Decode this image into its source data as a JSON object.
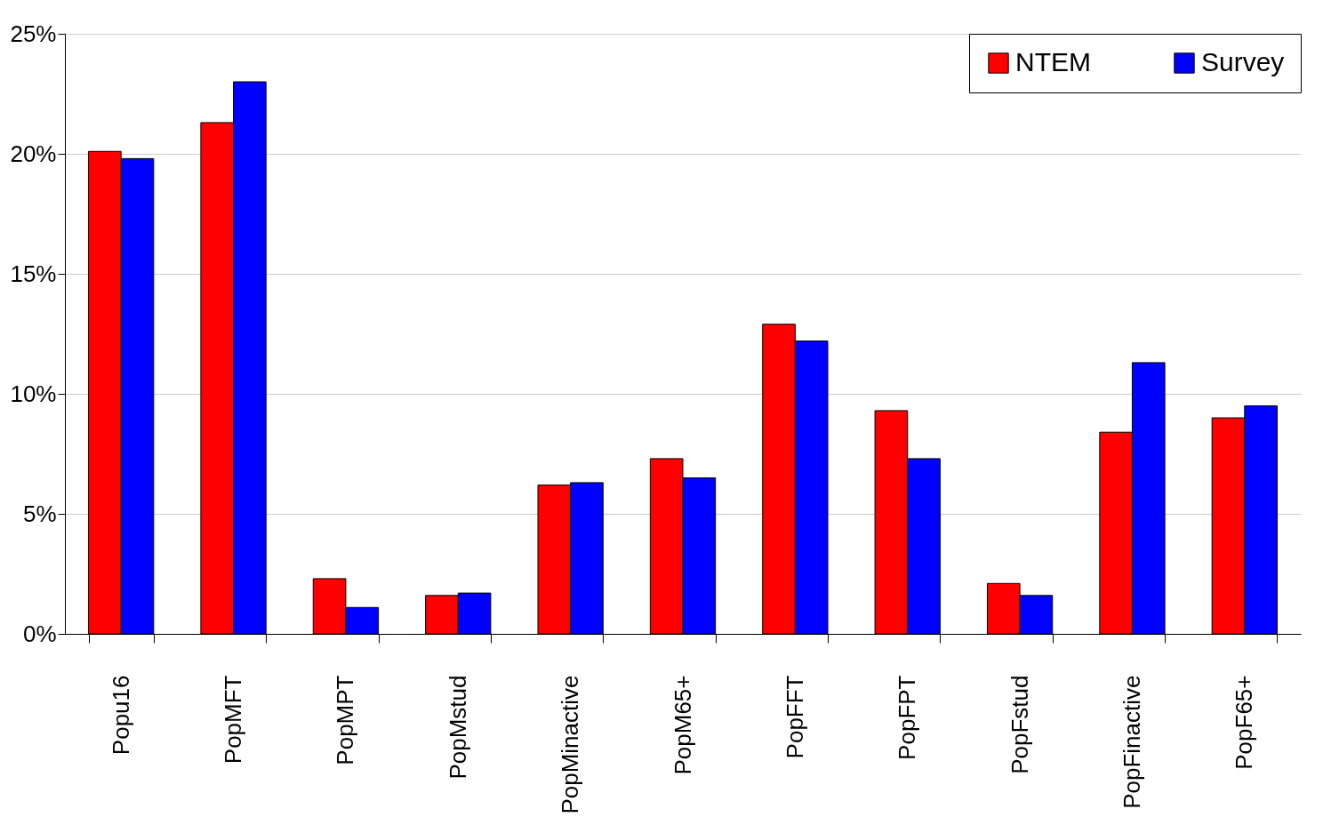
{
  "chart_data": {
    "type": "bar",
    "categories": [
      "Popu16",
      "PopMFT",
      "PopMPT",
      "PopMstud",
      "PopMinactive",
      "PopM65+",
      "PopFFT",
      "PopFPT",
      "PopFstud",
      "PopFinactive",
      "PopF65+"
    ],
    "series": [
      {
        "name": "NTEM",
        "color": "#ff0000",
        "values": [
          20.1,
          21.3,
          2.3,
          1.6,
          6.2,
          7.3,
          12.9,
          9.3,
          2.1,
          8.4,
          9.0
        ]
      },
      {
        "name": "Survey",
        "color": "#0000ff",
        "values": [
          19.8,
          23.0,
          1.1,
          1.7,
          6.3,
          6.5,
          12.2,
          7.3,
          1.6,
          11.3,
          9.5
        ]
      }
    ],
    "ylim": [
      0,
      25
    ],
    "yticks": [
      {
        "value": 0,
        "label": "0%"
      },
      {
        "value": 5,
        "label": "5%"
      },
      {
        "value": 10,
        "label": "10%"
      },
      {
        "value": 15,
        "label": "15%"
      },
      {
        "value": 20,
        "label": "20%"
      },
      {
        "value": 25,
        "label": "25%"
      }
    ],
    "grid": "y",
    "legend": "top right"
  }
}
